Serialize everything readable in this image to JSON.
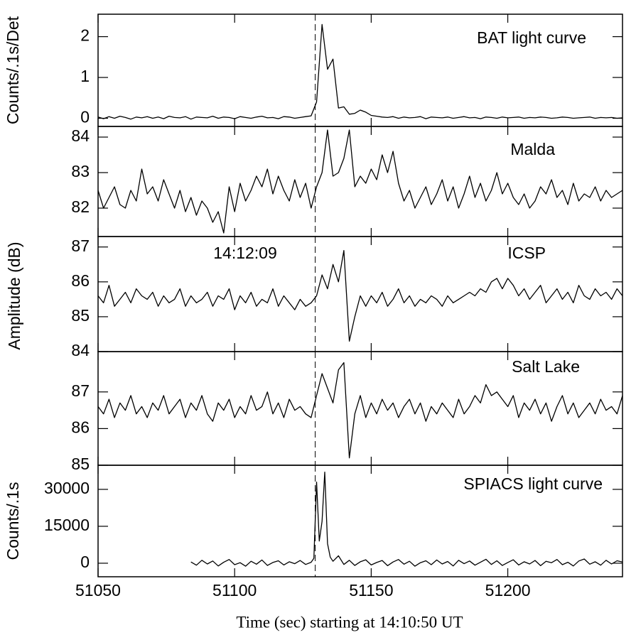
{
  "xlabel": "Time (sec) starting at 14:10:50 UT",
  "ylabel": "Amplitude (dB)",
  "chart_data": [
    {
      "type": "line",
      "title": "BAT light curve",
      "ylabel": "Counts/.1s/Det",
      "color": "#000000",
      "x": [
        51050,
        51052,
        51054,
        51056,
        51058,
        51060,
        51062,
        51064,
        51066,
        51068,
        51070,
        51072,
        51074,
        51076,
        51078,
        51080,
        51082,
        51084,
        51086,
        51088,
        51090,
        51092,
        51094,
        51096,
        51098,
        51100,
        51102,
        51104,
        51106,
        51108,
        51110,
        51112,
        51114,
        51116,
        51118,
        51120,
        51122,
        51124,
        51126,
        51128,
        51130,
        51132,
        51134,
        51136,
        51138,
        51140,
        51142,
        51144,
        51146,
        51148,
        51150,
        51152,
        51154,
        51156,
        51158,
        51160,
        51162,
        51164,
        51166,
        51168,
        51170,
        51172,
        51174,
        51176,
        51178,
        51180,
        51182,
        51184,
        51186,
        51188,
        51190,
        51192,
        51194,
        51196,
        51198,
        51200,
        51202,
        51204,
        51206,
        51208,
        51210,
        51212,
        51214,
        51216,
        51218,
        51220,
        51222,
        51224,
        51226,
        51228,
        51230,
        51232,
        51234,
        51236,
        51238,
        51240,
        51242
      ],
      "values": [
        0.03,
        -0.01,
        0.04,
        0.0,
        0.05,
        0.02,
        -0.02,
        0.03,
        0.01,
        0.04,
        0.0,
        0.03,
        -0.01,
        0.05,
        0.02,
        0.01,
        0.04,
        -0.02,
        0.03,
        0.02,
        0.01,
        0.05,
        0.0,
        0.03,
        0.02,
        -0.01,
        0.04,
        0.02,
        0.0,
        0.03,
        0.05,
        0.01,
        0.02,
        -0.01,
        0.04,
        0.03,
        0.0,
        0.02,
        0.04,
        0.06,
        0.4,
        2.3,
        1.2,
        1.45,
        0.25,
        0.28,
        0.1,
        0.12,
        0.2,
        0.15,
        0.07,
        0.05,
        0.03,
        0.02,
        0.04,
        0.0,
        0.03,
        0.01,
        0.02,
        0.04,
        -0.01,
        0.03,
        0.02,
        0.01,
        0.03,
        0.0,
        0.02,
        0.04,
        0.01,
        0.02,
        -0.01,
        0.03,
        0.02,
        0.0,
        0.03,
        0.01,
        0.02,
        0.03,
        0.0,
        0.02,
        0.01,
        0.03,
        0.02,
        0.0,
        0.01,
        0.03,
        0.02,
        0.0,
        0.01,
        0.02,
        0.03,
        0.0,
        0.02,
        0.01,
        0.02,
        0.0,
        0.01
      ],
      "xlim": [
        51050,
        51242
      ],
      "xticks": [
        51050,
        51100,
        51150,
        51200
      ],
      "ylim": [
        -0.2,
        2.55
      ],
      "yticks": [
        0,
        1,
        2
      ],
      "vline": 51129.5
    },
    {
      "type": "line",
      "title": "Malda",
      "color": "#000000",
      "x": [
        51050,
        51052,
        51054,
        51056,
        51058,
        51060,
        51062,
        51064,
        51066,
        51068,
        51070,
        51072,
        51074,
        51076,
        51078,
        51080,
        51082,
        51084,
        51086,
        51088,
        51090,
        51092,
        51094,
        51096,
        51098,
        51100,
        51102,
        51104,
        51106,
        51108,
        51110,
        51112,
        51114,
        51116,
        51118,
        51120,
        51122,
        51124,
        51126,
        51128,
        51130,
        51132,
        51134,
        51136,
        51138,
        51140,
        51142,
        51144,
        51146,
        51148,
        51150,
        51152,
        51154,
        51156,
        51158,
        51160,
        51162,
        51164,
        51166,
        51168,
        51170,
        51172,
        51174,
        51176,
        51178,
        51180,
        51182,
        51184,
        51186,
        51188,
        51190,
        51192,
        51194,
        51196,
        51198,
        51200,
        51202,
        51204,
        51206,
        51208,
        51210,
        51212,
        51214,
        51216,
        51218,
        51220,
        51222,
        51224,
        51226,
        51228,
        51230,
        51232,
        51234,
        51236,
        51238,
        51240,
        51242
      ],
      "values": [
        82.5,
        82.0,
        82.3,
        82.6,
        82.1,
        82.0,
        82.5,
        82.2,
        83.1,
        82.4,
        82.6,
        82.2,
        82.8,
        82.4,
        82.0,
        82.5,
        81.9,
        82.3,
        81.8,
        82.2,
        82.0,
        81.6,
        81.9,
        81.3,
        82.6,
        81.9,
        82.7,
        82.2,
        82.5,
        82.9,
        82.6,
        83.1,
        82.4,
        82.9,
        82.5,
        82.2,
        82.8,
        82.3,
        82.7,
        82.0,
        82.6,
        83.0,
        84.2,
        82.9,
        83.0,
        83.4,
        84.2,
        82.6,
        82.9,
        82.7,
        83.1,
        82.8,
        83.5,
        83.0,
        83.6,
        82.7,
        82.2,
        82.5,
        82.0,
        82.3,
        82.6,
        82.1,
        82.4,
        82.8,
        82.2,
        82.6,
        82.0,
        82.4,
        82.9,
        82.3,
        82.7,
        82.2,
        82.5,
        83.0,
        82.4,
        82.7,
        82.3,
        82.1,
        82.4,
        82.0,
        82.2,
        82.6,
        82.4,
        82.8,
        82.3,
        82.5,
        82.1,
        82.7,
        82.2,
        82.4,
        82.3,
        82.6,
        82.2,
        82.5,
        82.3,
        82.4,
        82.5
      ],
      "xlim": [
        51050,
        51242
      ],
      "xticks": [
        51050,
        51100,
        51150,
        51200
      ],
      "ylim": [
        81.2,
        84.3
      ],
      "yticks": [
        82,
        83,
        84
      ],
      "vline": 51129.5
    },
    {
      "type": "line",
      "title": "ICSP",
      "annotation": "14:12:09",
      "color": "#000000",
      "x": [
        51050,
        51052,
        51054,
        51056,
        51058,
        51060,
        51062,
        51064,
        51066,
        51068,
        51070,
        51072,
        51074,
        51076,
        51078,
        51080,
        51082,
        51084,
        51086,
        51088,
        51090,
        51092,
        51094,
        51096,
        51098,
        51100,
        51102,
        51104,
        51106,
        51108,
        51110,
        51112,
        51114,
        51116,
        51118,
        51120,
        51122,
        51124,
        51126,
        51128,
        51130,
        51132,
        51134,
        51136,
        51138,
        51140,
        51142,
        51144,
        51146,
        51148,
        51150,
        51152,
        51154,
        51156,
        51158,
        51160,
        51162,
        51164,
        51166,
        51168,
        51170,
        51172,
        51174,
        51176,
        51178,
        51180,
        51182,
        51184,
        51186,
        51188,
        51190,
        51192,
        51194,
        51196,
        51198,
        51200,
        51202,
        51204,
        51206,
        51208,
        51210,
        51212,
        51214,
        51216,
        51218,
        51220,
        51222,
        51224,
        51226,
        51228,
        51230,
        51232,
        51234,
        51236,
        51238,
        51240,
        51242
      ],
      "values": [
        85.6,
        85.4,
        85.9,
        85.3,
        85.5,
        85.7,
        85.4,
        85.8,
        85.6,
        85.5,
        85.7,
        85.3,
        85.6,
        85.4,
        85.5,
        85.8,
        85.3,
        85.6,
        85.4,
        85.5,
        85.7,
        85.3,
        85.6,
        85.5,
        85.8,
        85.2,
        85.6,
        85.4,
        85.7,
        85.3,
        85.5,
        85.4,
        85.8,
        85.3,
        85.6,
        85.4,
        85.2,
        85.5,
        85.3,
        85.4,
        85.6,
        86.2,
        85.8,
        86.5,
        86.0,
        86.9,
        84.3,
        85.0,
        85.6,
        85.3,
        85.6,
        85.4,
        85.7,
        85.3,
        85.5,
        85.8,
        85.4,
        85.6,
        85.3,
        85.5,
        85.4,
        85.6,
        85.5,
        85.3,
        85.6,
        85.4,
        85.5,
        85.6,
        85.7,
        85.6,
        85.8,
        85.7,
        86.0,
        86.1,
        85.8,
        86.1,
        85.9,
        85.6,
        85.8,
        85.5,
        85.7,
        85.9,
        85.4,
        85.6,
        85.8,
        85.5,
        85.7,
        85.4,
        85.9,
        85.6,
        85.5,
        85.8,
        85.6,
        85.7,
        85.5,
        85.8,
        85.6
      ],
      "xlim": [
        51050,
        51242
      ],
      "xticks": [
        51050,
        51100,
        51150,
        51200
      ],
      "ylim": [
        84,
        87.3
      ],
      "yticks": [
        84,
        85,
        86,
        87
      ],
      "vline": 51129.5
    },
    {
      "type": "line",
      "title": "Salt Lake",
      "color": "#000000",
      "x": [
        51050,
        51052,
        51054,
        51056,
        51058,
        51060,
        51062,
        51064,
        51066,
        51068,
        51070,
        51072,
        51074,
        51076,
        51078,
        51080,
        51082,
        51084,
        51086,
        51088,
        51090,
        51092,
        51094,
        51096,
        51098,
        51100,
        51102,
        51104,
        51106,
        51108,
        51110,
        51112,
        51114,
        51116,
        51118,
        51120,
        51122,
        51124,
        51126,
        51128,
        51130,
        51132,
        51134,
        51136,
        51138,
        51140,
        51142,
        51144,
        51146,
        51148,
        51150,
        51152,
        51154,
        51156,
        51158,
        51160,
        51162,
        51164,
        51166,
        51168,
        51170,
        51172,
        51174,
        51176,
        51178,
        51180,
        51182,
        51184,
        51186,
        51188,
        51190,
        51192,
        51194,
        51196,
        51198,
        51200,
        51202,
        51204,
        51206,
        51208,
        51210,
        51212,
        51214,
        51216,
        51218,
        51220,
        51222,
        51224,
        51226,
        51228,
        51230,
        51232,
        51234,
        51236,
        51238,
        51240,
        51242
      ],
      "values": [
        86.6,
        86.4,
        86.8,
        86.3,
        86.7,
        86.5,
        86.9,
        86.4,
        86.6,
        86.3,
        86.7,
        86.5,
        86.9,
        86.4,
        86.6,
        86.8,
        86.3,
        86.7,
        86.5,
        86.9,
        86.4,
        86.2,
        86.7,
        86.5,
        86.8,
        86.3,
        86.6,
        86.4,
        86.9,
        86.5,
        86.6,
        87.0,
        86.4,
        86.7,
        86.3,
        86.8,
        86.5,
        86.6,
        86.4,
        86.3,
        86.9,
        87.5,
        87.1,
        86.7,
        87.6,
        87.8,
        85.2,
        86.4,
        86.9,
        86.3,
        86.7,
        86.4,
        86.8,
        86.5,
        86.7,
        86.3,
        86.6,
        86.8,
        86.4,
        86.7,
        86.2,
        86.6,
        86.4,
        86.7,
        86.5,
        86.3,
        86.8,
        86.4,
        86.6,
        86.9,
        86.7,
        87.2,
        86.9,
        87.0,
        86.8,
        86.6,
        86.9,
        86.3,
        86.7,
        86.5,
        86.8,
        86.4,
        86.7,
        86.2,
        86.6,
        86.9,
        86.4,
        86.7,
        86.3,
        86.5,
        86.7,
        86.4,
        86.8,
        86.5,
        86.6,
        86.4,
        86.9
      ],
      "xlim": [
        51050,
        51242
      ],
      "xticks": [
        51050,
        51100,
        51150,
        51200
      ],
      "ylim": [
        85,
        88.1
      ],
      "yticks": [
        85,
        86,
        87
      ],
      "vline": 51129.5
    },
    {
      "type": "line",
      "title": "SPIACS light curve",
      "ylabel": "Counts/.1s",
      "color": "#000000",
      "x": [
        51084,
        51086,
        51088,
        51090,
        51092,
        51094,
        51096,
        51098,
        51100,
        51102,
        51104,
        51106,
        51108,
        51110,
        51112,
        51114,
        51116,
        51118,
        51120,
        51122,
        51124,
        51126,
        51128,
        51129,
        51130,
        51131,
        51132,
        51133,
        51134,
        51135,
        51136,
        51138,
        51140,
        51142,
        51144,
        51146,
        51148,
        51150,
        51152,
        51154,
        51156,
        51158,
        51160,
        51162,
        51164,
        51166,
        51168,
        51170,
        51172,
        51174,
        51176,
        51178,
        51180,
        51182,
        51184,
        51186,
        51188,
        51190,
        51192,
        51194,
        51196,
        51198,
        51200,
        51202,
        51204,
        51206,
        51208,
        51210,
        51212,
        51214,
        51216,
        51218,
        51220,
        51222,
        51224,
        51226,
        51228,
        51230,
        51232,
        51234,
        51236,
        51238,
        51240,
        51242
      ],
      "values": [
        500,
        -800,
        1200,
        -300,
        900,
        -1100,
        400,
        1500,
        -600,
        200,
        -1200,
        800,
        -400,
        1300,
        -900,
        300,
        1000,
        -700,
        600,
        -200,
        1100,
        -500,
        400,
        2000,
        33000,
        9000,
        17000,
        37000,
        8000,
        2500,
        800,
        3000,
        -500,
        1200,
        -900,
        600,
        1400,
        -700,
        300,
        1100,
        -1000,
        500,
        1500,
        -400,
        800,
        -1200,
        200,
        1000,
        -600,
        1300,
        -300,
        700,
        -1100,
        1200,
        -200,
        900,
        -800,
        400,
        1600,
        -500,
        1000,
        -900,
        300,
        1400,
        -700,
        600,
        -300,
        1100,
        -1000,
        800,
        200,
        1500,
        -600,
        400,
        -1100,
        900,
        1700,
        -400,
        600,
        -800,
        1200,
        -300,
        1000,
        500
      ],
      "xlim": [
        51050,
        51242
      ],
      "xticks": [
        51050,
        51100,
        51150,
        51200
      ],
      "ylim": [
        -5500,
        39800
      ],
      "yticks": [
        0,
        15000,
        30000
      ],
      "vline": 51129.5
    }
  ]
}
